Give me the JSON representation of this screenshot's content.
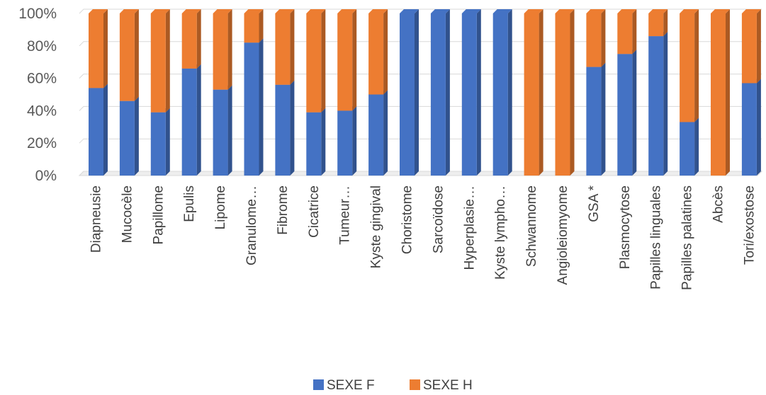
{
  "chart_data": {
    "type": "bar",
    "stacked": "percent",
    "categories": [
      "Diapneusie",
      "Mucocèle",
      "Papillome",
      "Epulis",
      "Lipome",
      "Granulome…",
      "Fibrome",
      "Cicatrice",
      "Tumeur…",
      "Kyste gingival",
      "Choristome",
      "Sarcoïdose",
      "Hyperplasie…",
      "Kyste lympho…",
      "Schwannome",
      "Angioleiomyome",
      "GSA *",
      "Plasmocytose",
      "Papilles linguales",
      "Papilles palatines",
      "Abcès",
      "Tori/exostose"
    ],
    "series": [
      {
        "name": "SEXE F",
        "color": "#4472C4",
        "values": [
          54,
          46,
          39,
          66,
          53,
          82,
          56,
          39,
          40,
          50,
          100,
          100,
          100,
          100,
          0,
          0,
          67,
          75,
          86,
          33,
          0,
          57
        ]
      },
      {
        "name": "SEXE H",
        "color": "#ED7D31",
        "values": [
          46,
          54,
          61,
          34,
          47,
          18,
          44,
          61,
          60,
          50,
          0,
          0,
          0,
          0,
          100,
          100,
          33,
          25,
          14,
          67,
          100,
          43
        ]
      }
    ],
    "yticks": [
      "0%",
      "20%",
      "40%",
      "60%",
      "80%",
      "100%"
    ],
    "ylim": [
      0,
      100
    ],
    "grid": true,
    "legend_position": "bottom"
  },
  "legend": {
    "items": [
      "SEXE F",
      "SEXE H"
    ]
  }
}
